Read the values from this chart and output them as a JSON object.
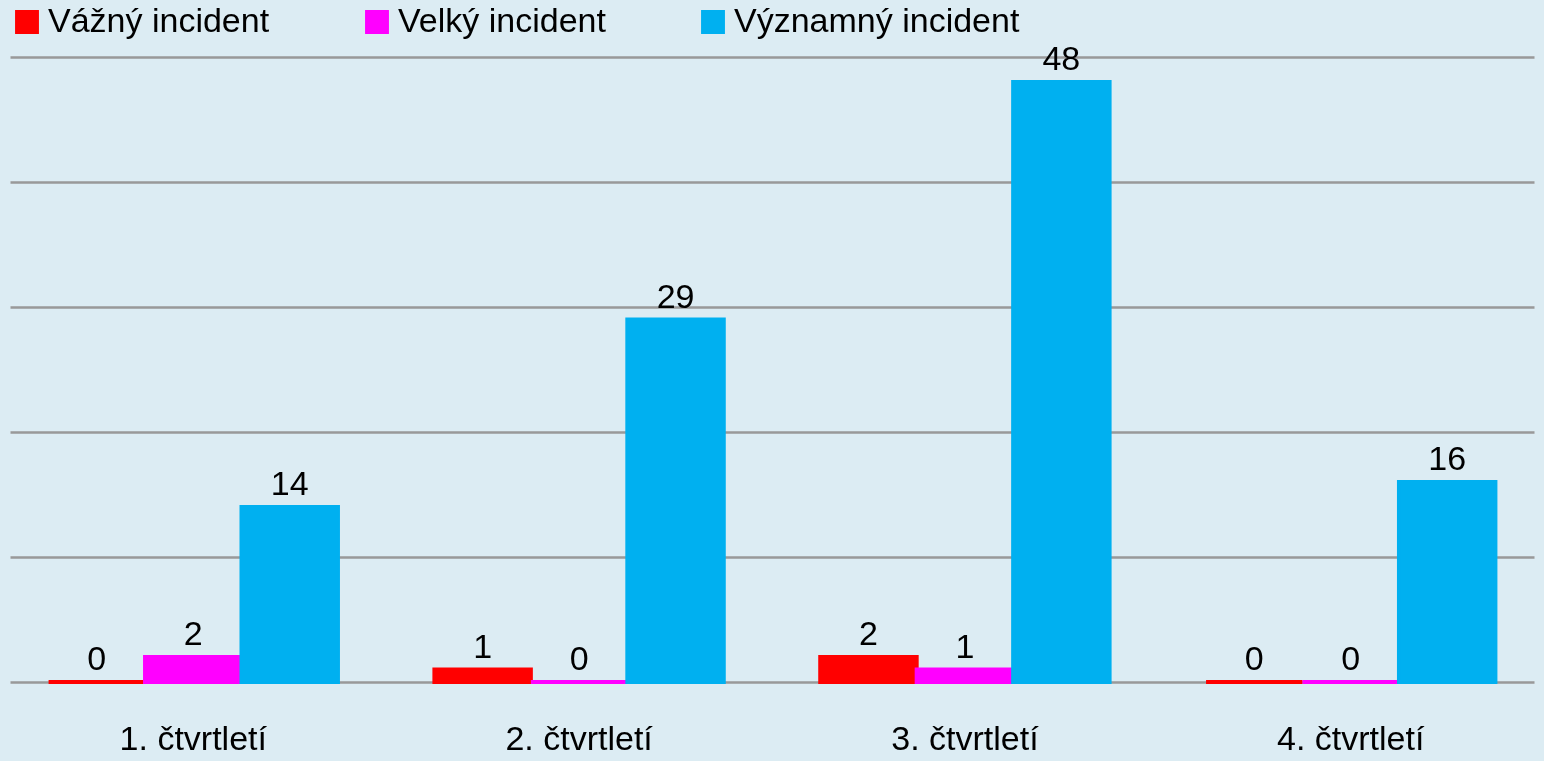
{
  "chart_data": {
    "type": "bar",
    "categories": [
      "1. čtvrtletí",
      "2. čtvrtletí",
      "3. čtvrtletí",
      "4. čtvrtletí"
    ],
    "series": [
      {
        "name": "Vážný incident",
        "color": "#ff0000",
        "values": [
          0,
          1,
          2,
          0
        ]
      },
      {
        "name": "Velký incident",
        "color": "#ff00ff",
        "values": [
          2,
          0,
          1,
          0
        ]
      },
      {
        "name": "Významný incident",
        "color": "#00b0f0",
        "values": [
          14,
          29,
          48,
          16
        ]
      }
    ],
    "ylim": [
      0,
      50
    ],
    "yticks": [
      {
        "value": 0,
        "label": null
      },
      {
        "value": 10,
        "label": null
      },
      {
        "value": 20,
        "label": null
      },
      {
        "value": 30,
        "label": null
      },
      {
        "value": 40,
        "label": null
      },
      {
        "value": 50,
        "label": null
      }
    ],
    "tick_labels": "x",
    "grid": "y",
    "legend": "top",
    "data_labels": true
  }
}
